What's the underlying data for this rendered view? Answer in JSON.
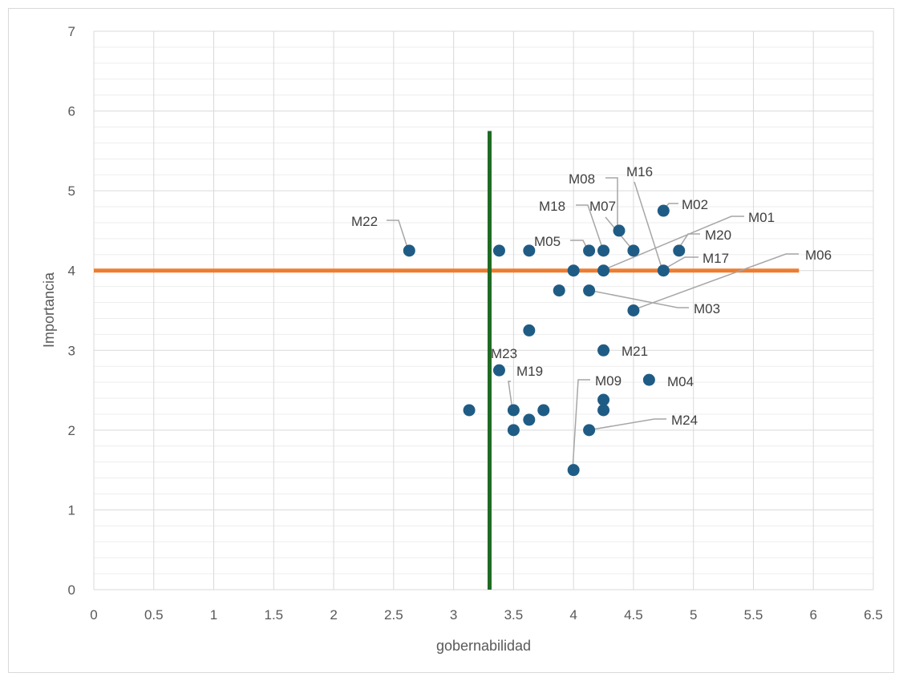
{
  "chart_data": {
    "type": "scatter",
    "title": "",
    "xlabel": "gobernabilidad",
    "ylabel": "Importancia",
    "xlim": [
      0,
      6.5
    ],
    "ylim": [
      0,
      7
    ],
    "x_ticks": [
      "0",
      "0.5",
      "1",
      "1.5",
      "2",
      "2.5",
      "3",
      "3.5",
      "4",
      "4.5",
      "5",
      "5.5",
      "6",
      "6.5"
    ],
    "y_ticks": [
      "0",
      "1",
      "2",
      "3",
      "4",
      "5",
      "6",
      "7"
    ],
    "grid": true,
    "marker_color": "#1f5c85",
    "points": [
      {
        "x": 2.63,
        "y": 4.25
      },
      {
        "x": 3.38,
        "y": 4.25
      },
      {
        "x": 3.63,
        "y": 4.25
      },
      {
        "x": 4.13,
        "y": 4.25
      },
      {
        "x": 4.25,
        "y": 4.25
      },
      {
        "x": 4.5,
        "y": 4.25
      },
      {
        "x": 4.88,
        "y": 4.25
      },
      {
        "x": 4.75,
        "y": 4.75
      },
      {
        "x": 4.38,
        "y": 4.5
      },
      {
        "x": 4.0,
        "y": 4.0
      },
      {
        "x": 4.25,
        "y": 4.0
      },
      {
        "x": 4.75,
        "y": 4.0
      },
      {
        "x": 3.88,
        "y": 3.75
      },
      {
        "x": 4.13,
        "y": 3.75
      },
      {
        "x": 4.5,
        "y": 3.5
      },
      {
        "x": 3.63,
        "y": 3.25
      },
      {
        "x": 4.25,
        "y": 3.0
      },
      {
        "x": 3.38,
        "y": 2.75
      },
      {
        "x": 4.63,
        "y": 2.63
      },
      {
        "x": 4.25,
        "y": 2.38
      },
      {
        "x": 3.13,
        "y": 2.25
      },
      {
        "x": 3.5,
        "y": 2.25
      },
      {
        "x": 3.75,
        "y": 2.25
      },
      {
        "x": 4.25,
        "y": 2.25
      },
      {
        "x": 3.63,
        "y": 2.13
      },
      {
        "x": 3.5,
        "y": 2.0
      },
      {
        "x": 4.13,
        "y": 2.0
      },
      {
        "x": 4.0,
        "y": 1.5
      }
    ],
    "labels": [
      {
        "text": "M22",
        "x": 2.63,
        "y": 4.25
      },
      {
        "text": "M05",
        "x": 4.13,
        "y": 4.25
      },
      {
        "text": "M18",
        "x": 4.25,
        "y": 4.25
      },
      {
        "text": "M07",
        "x": 4.5,
        "y": 4.25
      },
      {
        "text": "M08",
        "x": 4.38,
        "y": 4.5
      },
      {
        "text": "M16",
        "x": 4.75,
        "y": 4.0
      },
      {
        "text": "M02",
        "x": 4.75,
        "y": 4.75
      },
      {
        "text": "M01",
        "x": 4.25,
        "y": 4.0
      },
      {
        "text": "M20",
        "x": 4.88,
        "y": 4.25
      },
      {
        "text": "M17",
        "x": 4.75,
        "y": 4.0
      },
      {
        "text": "M06",
        "x": 4.5,
        "y": 3.5
      },
      {
        "text": "M03",
        "x": 4.13,
        "y": 3.75
      },
      {
        "text": "M21",
        "x": 4.25,
        "y": 3.0
      },
      {
        "text": "M23",
        "x": 3.38,
        "y": 2.75
      },
      {
        "text": "M19",
        "x": 3.5,
        "y": 2.25
      },
      {
        "text": "M09",
        "x": 4.0,
        "y": 1.5
      },
      {
        "text": "M04",
        "x": 4.63,
        "y": 2.63
      },
      {
        "text": "M24",
        "x": 4.13,
        "y": 2.0
      }
    ],
    "reference_lines": [
      {
        "orientation": "horizontal",
        "value": 4.0,
        "from": 0,
        "to": 5.88,
        "color": "#ed7d31"
      },
      {
        "orientation": "vertical",
        "value": 3.3,
        "from": 0,
        "to": 5.75,
        "color": "#1e6b24"
      }
    ]
  }
}
